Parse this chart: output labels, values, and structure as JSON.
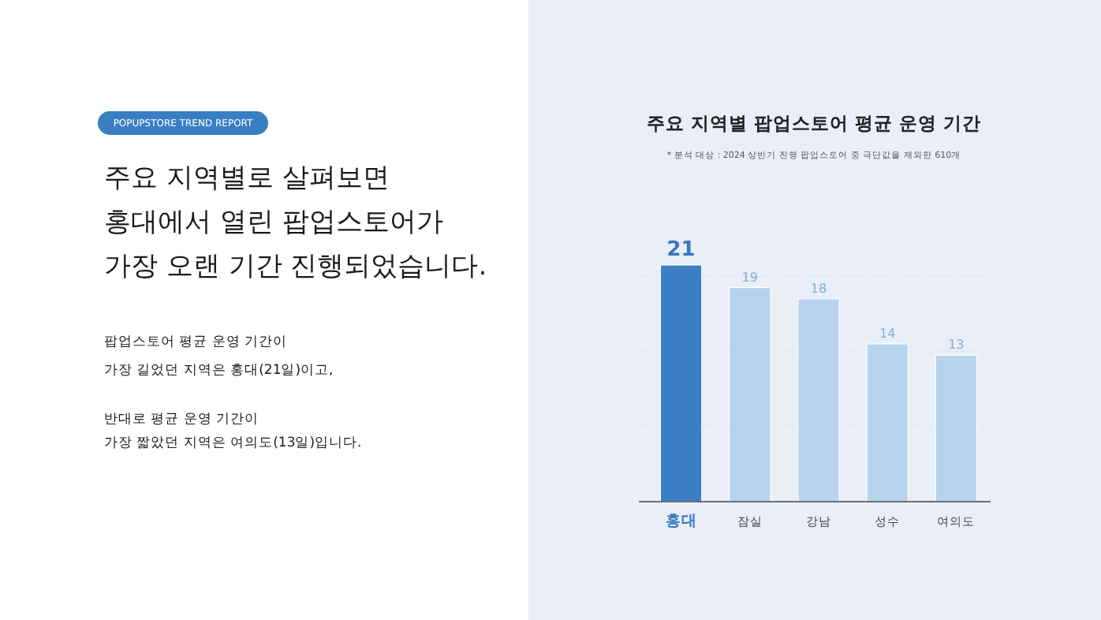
{
  "chart_data": {
    "type": "bar",
    "title": "주요 지역별 팝업스토어 평균 운영 기간",
    "subtitle": "* 분석 대상 : 2024 상반기 진행 팝업스토어 중 극단값을 제외한 610개",
    "categories": [
      "홍대",
      "잠실",
      "강남",
      "성수",
      "여의도"
    ],
    "values": [
      21,
      19,
      18,
      14,
      13
    ],
    "colors": [
      "#3a7ec4",
      "#b6d3ee",
      "#b6d3ee",
      "#b6d3ee",
      "#b6d3ee"
    ],
    "data_labels": true,
    "yticks": [
      {
        "value": 6.7,
        "label": null
      },
      {
        "value": 13.3,
        "label": null
      },
      {
        "value": 20,
        "label": null
      }
    ],
    "grid": "y",
    "tick_labels": "x",
    "annotations": [
      "POPUPSTORE TREND REPORT",
      "주요 지역별로 살펴보면",
      "홍대에서 열린 팝업스토어가",
      "가장 오랜 기간 진행되었습니다.",
      "팝업스토어 평균 운영 기간이",
      "가장 길었던 지역은 홍대(21일)이고,",
      "반대로 평균 운영 기간이",
      "가장 짧았던 지역은 여의도(13일)입니다."
    ]
  }
}
